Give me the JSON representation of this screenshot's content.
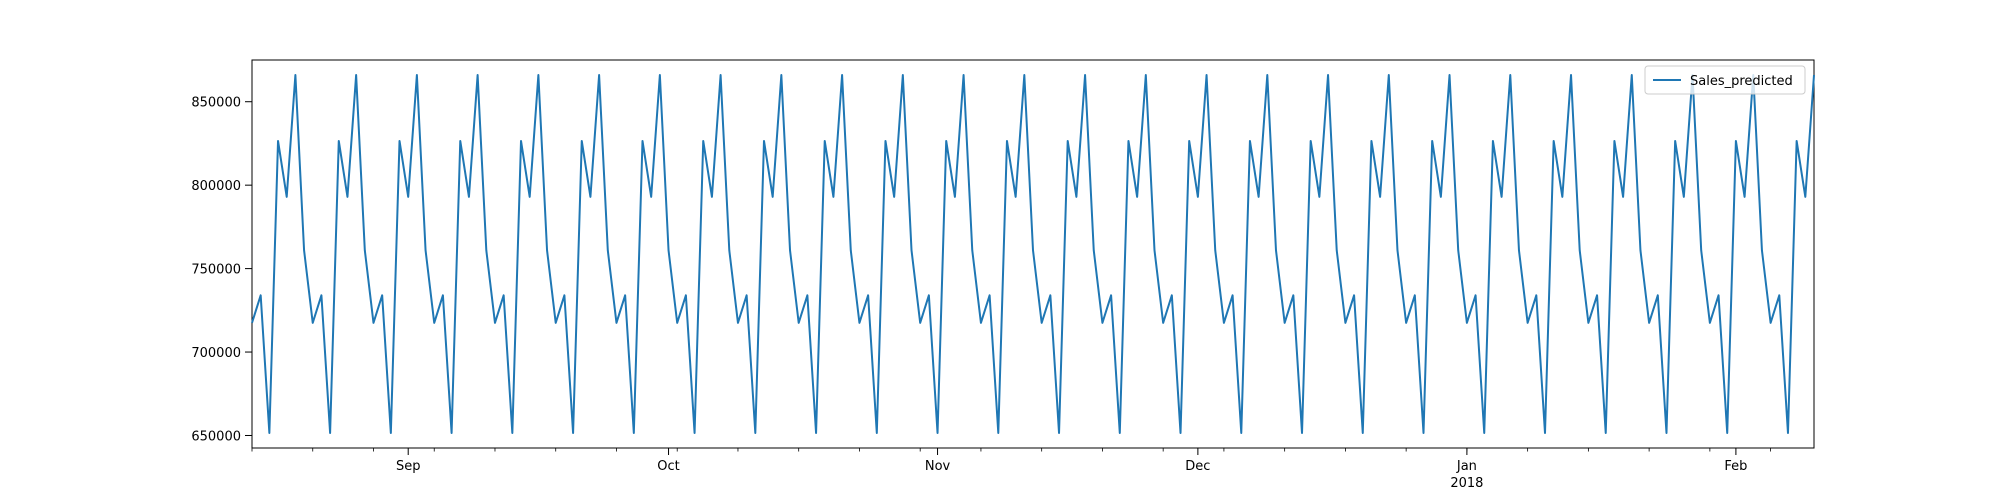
{
  "chart_data": {
    "type": "line",
    "title": "",
    "xlabel": "",
    "ylabel": "",
    "x_start": "2017-08-14",
    "x_end": "2018-02-10",
    "ylim": [
      642500,
      875000
    ],
    "grid": false,
    "legend": {
      "position": "top-right",
      "entries": [
        "Sales_predicted"
      ]
    },
    "series": [
      {
        "name": "Sales_predicted",
        "color": "#1f77b4",
        "weekly_pattern": [
          717500,
          734000,
          651500,
          826500,
          793000,
          866000,
          761000
        ]
      }
    ],
    "x_ticks": [
      {
        "date": "2017-09-01",
        "label": "Sep",
        "sublabel": ""
      },
      {
        "date": "2017-10-01",
        "label": "Oct",
        "sublabel": ""
      },
      {
        "date": "2017-11-01",
        "label": "Nov",
        "sublabel": ""
      },
      {
        "date": "2017-12-01",
        "label": "Dec",
        "sublabel": ""
      },
      {
        "date": "2018-01-01",
        "label": "Jan",
        "sublabel": "2018"
      },
      {
        "date": "2018-02-01",
        "label": "Feb",
        "sublabel": ""
      }
    ],
    "y_ticks": [
      650000,
      700000,
      750000,
      800000,
      850000
    ]
  }
}
